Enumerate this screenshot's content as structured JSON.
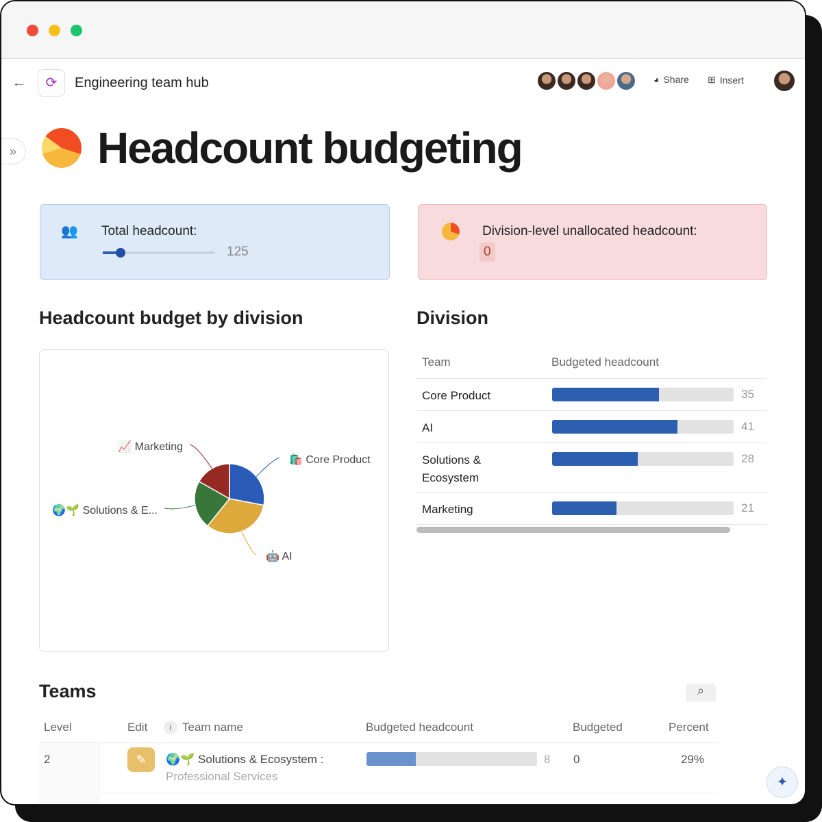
{
  "window": {
    "colors": {
      "close": "#ee4b3a",
      "minimize": "#f6be1d",
      "maximize": "#1cc46b"
    }
  },
  "header": {
    "doc_title": "Engineering team hub",
    "share": "Share",
    "insert": "Insert",
    "collaborators": 5
  },
  "page": {
    "title": "Headcount budgeting"
  },
  "total_card": {
    "label": "Total headcount:",
    "value": "125",
    "slider_fraction": 0.16
  },
  "unallocated_card": {
    "label": "Division-level unallocated headcount:",
    "value": "0"
  },
  "chart_section": {
    "title": "Headcount budget by division"
  },
  "chart_data": {
    "type": "pie",
    "categories": [
      "📈 Marketing",
      "🛍️ Core Product",
      "🌍🌱 Solutions & E...",
      "🤖 AI"
    ],
    "slices": [
      {
        "label": "🛍️ Core Product",
        "value": 35,
        "color": "#2a5bb8"
      },
      {
        "label": "🤖 AI",
        "value": 41,
        "color": "#dca93a"
      },
      {
        "label": "🌍🌱 Solutions & E...",
        "value": 28,
        "color": "#37773a"
      },
      {
        "label": "📈 Marketing",
        "value": 21,
        "color": "#952a22"
      }
    ]
  },
  "division": {
    "title": "Division",
    "headers": [
      "Team",
      "Budgeted headcount"
    ],
    "rows": [
      {
        "team": "Core Product",
        "value": "35"
      },
      {
        "team": "AI",
        "value": "41"
      },
      {
        "team": "Solutions & Ecosystem",
        "value": "28"
      },
      {
        "team": "Marketing",
        "value": "21"
      }
    ],
    "max": 125
  },
  "teams": {
    "title": "Teams",
    "headers": [
      "Level",
      "Edit",
      "Team name",
      "Budgeted headcount",
      "Budgeted",
      "Percent"
    ],
    "rows": [
      {
        "level": "2",
        "name": "🌍🌱 Solutions & Ecosystem :",
        "sub": "Professional Services",
        "headcount": "8",
        "budgeted": "0",
        "percent": "29%",
        "fraction": 0.29
      }
    ]
  }
}
